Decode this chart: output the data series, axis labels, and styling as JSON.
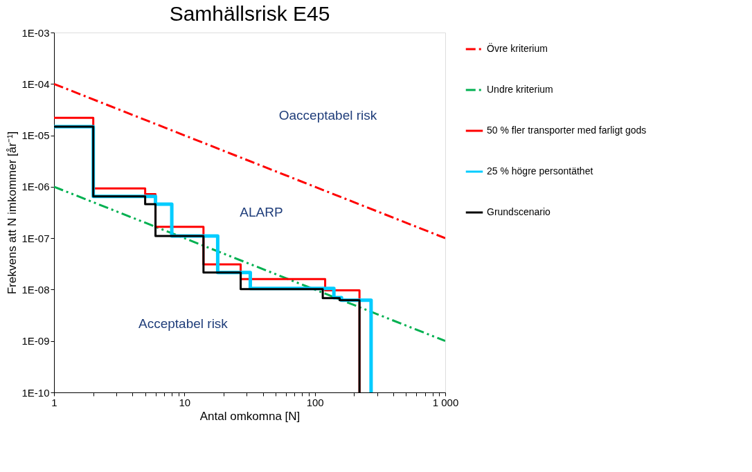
{
  "chart_data": {
    "type": "step",
    "title": "Samhällsrisk E45",
    "xlabel": "Antal omkomna [N]",
    "ylabel": "Frekvens att N imkommer [år⁻¹]",
    "log": "xy",
    "grid": false,
    "legend": "right",
    "xlim": [
      1,
      1000
    ],
    "ylim": [
      1e-10,
      0.001
    ],
    "xticks": [
      1,
      {
        "value": 2,
        "label": null
      },
      {
        "value": 3,
        "label": null
      },
      {
        "value": 4,
        "label": null
      },
      {
        "value": 5,
        "label": null
      },
      {
        "value": 6,
        "label": null
      },
      {
        "value": 7,
        "label": null
      },
      {
        "value": 8,
        "label": null
      },
      {
        "value": 9,
        "label": null
      },
      10,
      {
        "value": 20,
        "label": null
      },
      {
        "value": 30,
        "label": null
      },
      {
        "value": 40,
        "label": null
      },
      {
        "value": 50,
        "label": null
      },
      {
        "value": 60,
        "label": null
      },
      {
        "value": 70,
        "label": null
      },
      {
        "value": 80,
        "label": null
      },
      {
        "value": 90,
        "label": null
      },
      100,
      {
        "value": 200,
        "label": null
      },
      {
        "value": 300,
        "label": null
      },
      {
        "value": 400,
        "label": null
      },
      {
        "value": 500,
        "label": null
      },
      {
        "value": 600,
        "label": null
      },
      {
        "value": 700,
        "label": null
      },
      {
        "value": 800,
        "label": null
      },
      {
        "value": 900,
        "label": null
      },
      {
        "value": 1000,
        "label": "1 000"
      }
    ],
    "yticks": [
      {
        "value": 1e-10,
        "label": "1E-10"
      },
      {
        "value": 1e-09,
        "label": "1E-09"
      },
      {
        "value": 1e-08,
        "label": "1E-08"
      },
      {
        "value": 1e-07,
        "label": "1E-07"
      },
      {
        "value": 1e-06,
        "label": "1E-06"
      },
      {
        "value": 1e-05,
        "label": "1E-05"
      },
      {
        "value": 0.0001,
        "label": "1E-04"
      },
      {
        "value": 0.001,
        "label": "1E-03"
      }
    ],
    "series": [
      {
        "name": "Övre kriterium",
        "type": "line",
        "line_style": "dashed",
        "color": "#ff0000",
        "x": [
          1,
          1000
        ],
        "values": [
          0.0001,
          1e-07
        ]
      },
      {
        "name": "Undre kriterium",
        "type": "line",
        "line_style": "dotted",
        "color": "#00b050",
        "x": [
          1,
          1000
        ],
        "values": [
          1e-06,
          1e-09
        ]
      },
      {
        "name": "50 % fler transporter med farligt gods",
        "line_style": "solid",
        "color": "#ff0000",
        "x": [
          1,
          2,
          5,
          6,
          14,
          27,
          120,
          220
        ],
        "values": [
          2.2e-05,
          9.3e-07,
          7.2e-07,
          1.66e-07,
          3.1e-08,
          1.6e-08,
          9.7e-09,
          1e-10
        ]
      },
      {
        "name": "25 % högre persontäthet",
        "line_style": "solid",
        "color": "#00ccff",
        "x": [
          1,
          2,
          6,
          8,
          18,
          32,
          140,
          160,
          270
        ],
        "values": [
          1.48e-05,
          6.5e-07,
          4.6e-07,
          1.1e-07,
          2.15e-08,
          1.05e-08,
          7e-09,
          6.2e-09,
          1e-10
        ]
      },
      {
        "name": "Grundscenario",
        "line_style": "solid",
        "color": "#000000",
        "x": [
          1,
          2,
          5,
          6,
          14,
          27,
          115,
          155,
          220
        ],
        "values": [
          1.48e-05,
          6.5e-07,
          4.6e-07,
          1.1e-07,
          2.15e-08,
          1.02e-08,
          6.8e-09,
          6.2e-09,
          1e-10
        ]
      }
    ],
    "annotations": [
      "Oacceptabel risk",
      "ALARP",
      "Acceptabel risk"
    ]
  }
}
